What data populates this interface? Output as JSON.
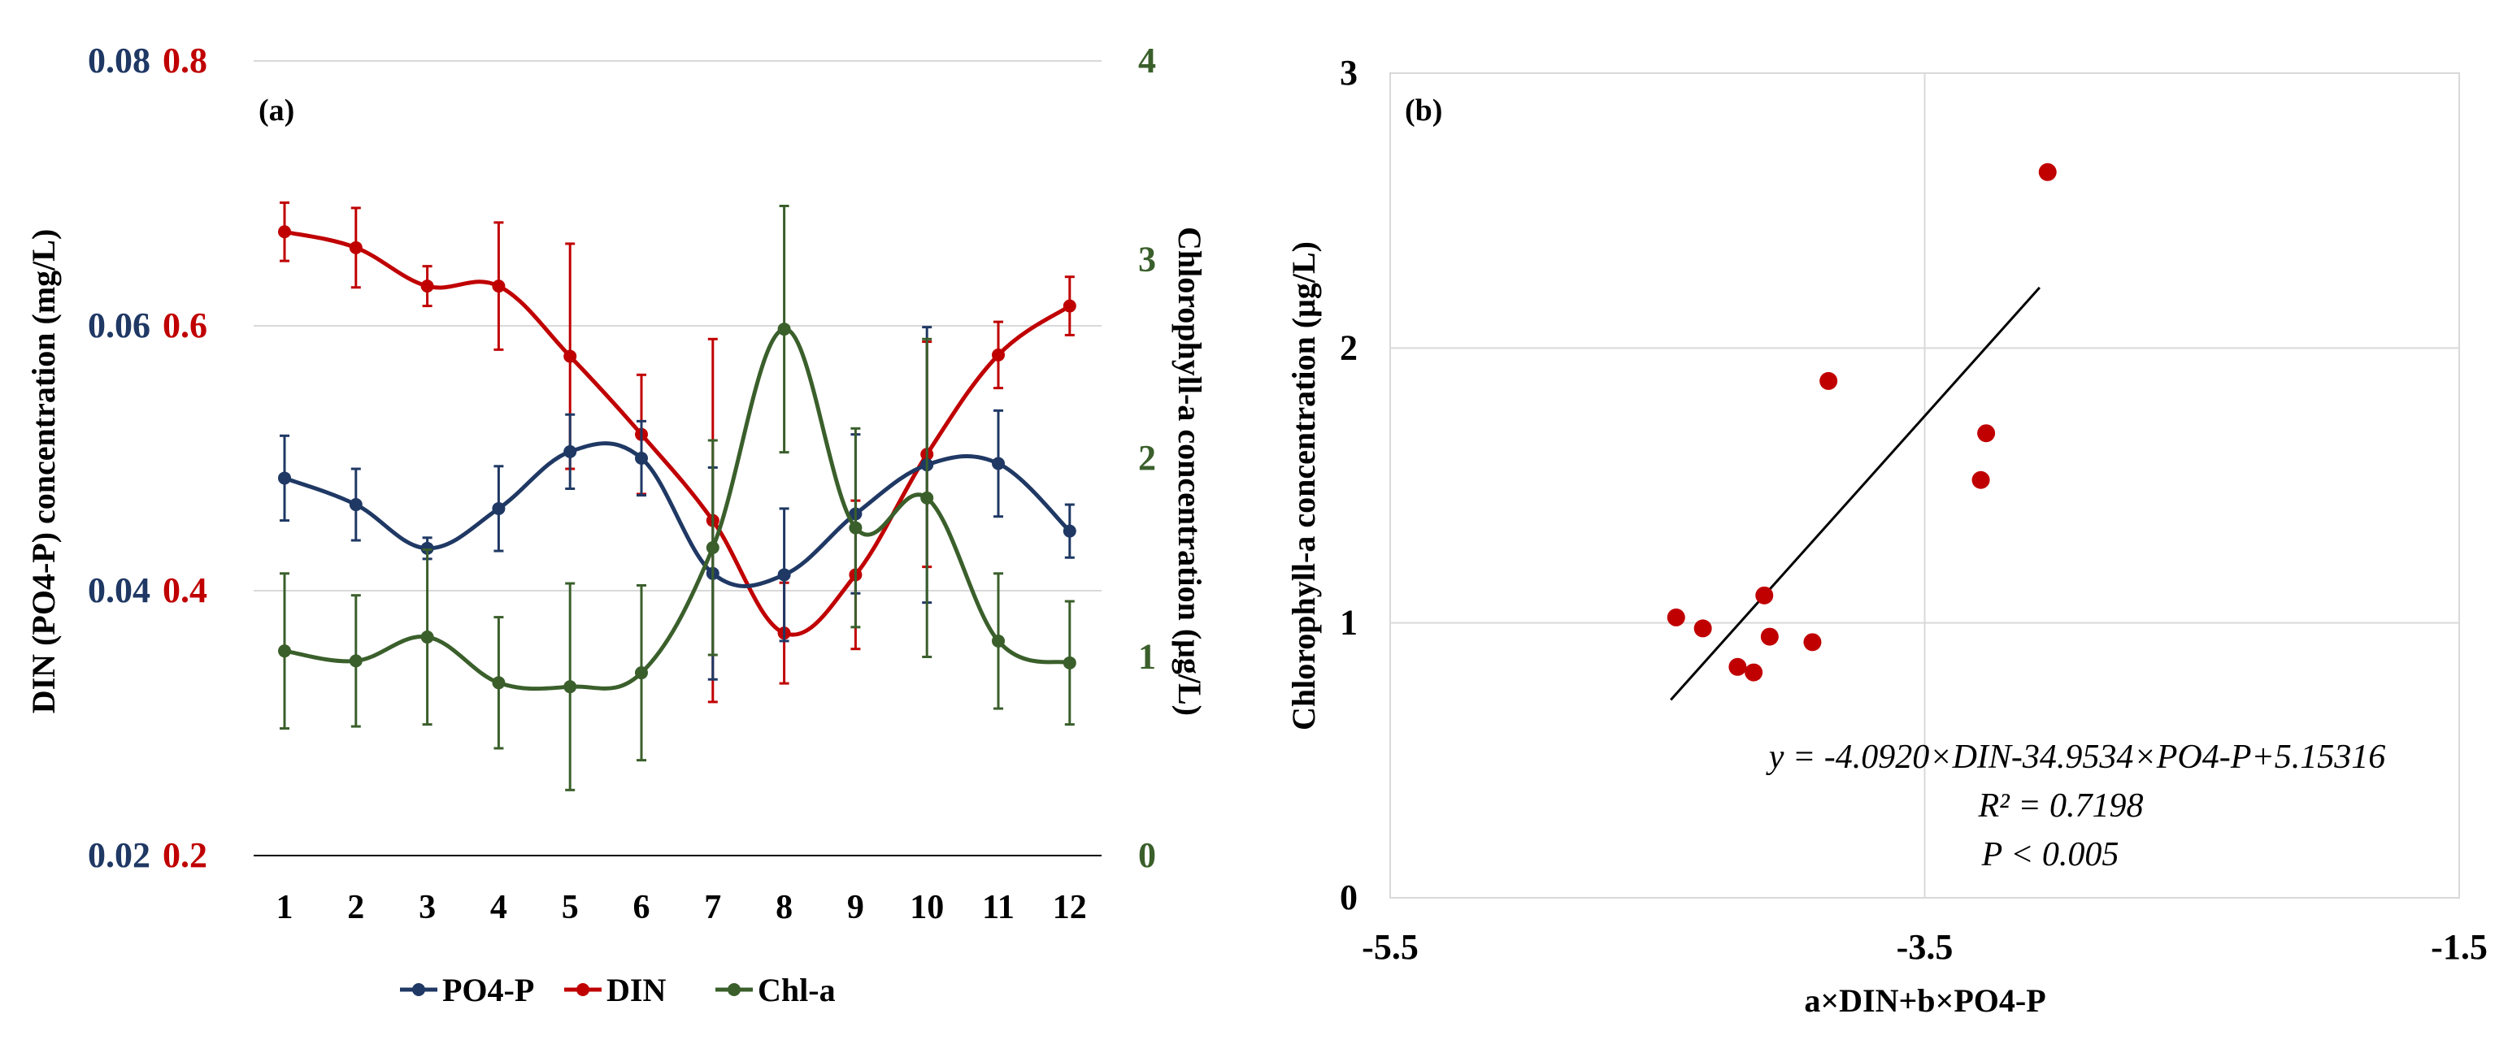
{
  "colors": {
    "po4": "#1f3864",
    "din": "#c00000",
    "chla": "#3a5f2b",
    "grid": "#d9d9d9",
    "axis": "#000000",
    "point": "#c00000"
  },
  "chart_data": [
    {
      "type": "line",
      "panel_label": "(a)",
      "categories": [
        "1",
        "2",
        "3",
        "4",
        "5",
        "6",
        "7",
        "8",
        "9",
        "10",
        "11",
        "12"
      ],
      "series": [
        {
          "name": "PO4-P",
          "axis": "left_po4",
          "values": [
            0.0485,
            0.0465,
            0.0432,
            0.0462,
            0.0505,
            0.05,
            0.0413,
            0.0412,
            0.0458,
            0.0495,
            0.0496,
            0.0445
          ],
          "errors": [
            0.0032,
            0.0027,
            0.0008,
            0.0032,
            0.0028,
            0.0028,
            0.008,
            0.005,
            0.006,
            0.0104,
            0.004,
            0.002
          ]
        },
        {
          "name": "DIN",
          "axis": "left_din",
          "values": [
            0.671,
            0.659,
            0.63,
            0.63,
            0.577,
            0.518,
            0.453,
            0.368,
            0.412,
            0.503,
            0.578,
            0.615
          ],
          "errors": [
            0.022,
            0.03,
            0.015,
            0.048,
            0.085,
            0.045,
            0.137,
            0.038,
            0.056,
            0.085,
            0.025,
            0.022
          ]
        },
        {
          "name": "Chl-a",
          "axis": "right",
          "values": [
            1.03,
            0.98,
            1.1,
            0.87,
            0.85,
            0.92,
            1.55,
            2.65,
            1.65,
            1.8,
            1.08,
            0.97
          ],
          "errors": [
            0.39,
            0.33,
            0.44,
            0.33,
            0.52,
            0.44,
            0.54,
            0.62,
            0.5,
            0.8,
            0.34,
            0.31
          ]
        }
      ],
      "left_po4_ticks": [
        "0.02",
        "0.04",
        "0.06",
        "0.08"
      ],
      "left_din_ticks": [
        "0.2",
        "0.4",
        "0.6",
        "0.8"
      ],
      "right_ticks": [
        "0",
        "1",
        "2",
        "3",
        "4"
      ],
      "ylim_po4": [
        0.02,
        0.08
      ],
      "ylim_din": [
        0.2,
        0.8
      ],
      "ylim_chla": [
        0,
        4
      ],
      "ylabel_left": "DIN (PO4-P)  concentration (mg/L)",
      "ylabel_right": "Chlorophyll-a  concentration (μg/L)",
      "legend": [
        "PO4-P",
        "DIN",
        "Chl-a"
      ],
      "legend_position": "bottom"
    },
    {
      "type": "scatter",
      "panel_label": "(b)",
      "x": [
        -4.43,
        -4.33,
        -4.2,
        -4.14,
        -4.1,
        -4.08,
        -3.92,
        -3.86,
        -3.29,
        -3.27,
        -3.04
      ],
      "y": [
        1.02,
        0.98,
        0.84,
        0.82,
        1.1,
        0.95,
        0.93,
        1.88,
        1.52,
        1.69,
        2.64
      ],
      "trendline": {
        "x": [
          -4.45,
          -3.07
        ],
        "y": [
          0.72,
          2.22
        ]
      },
      "xlim": [
        -5.5,
        -1.5
      ],
      "ylim": [
        0,
        3
      ],
      "x_ticks": [
        "-5.5",
        "-3.5",
        "-1.5"
      ],
      "y_ticks": [
        "0",
        "1",
        "2",
        "3"
      ],
      "xlabel": "a×DIN+b×PO4-P",
      "ylabel": "Chlorophyll-a  concentration (μg/L)",
      "annotations": [
        "y = -4.0920×DIN-34.9534×PO4-P+5.15316",
        "R² = 0.7198",
        "P < 0.005"
      ]
    }
  ]
}
